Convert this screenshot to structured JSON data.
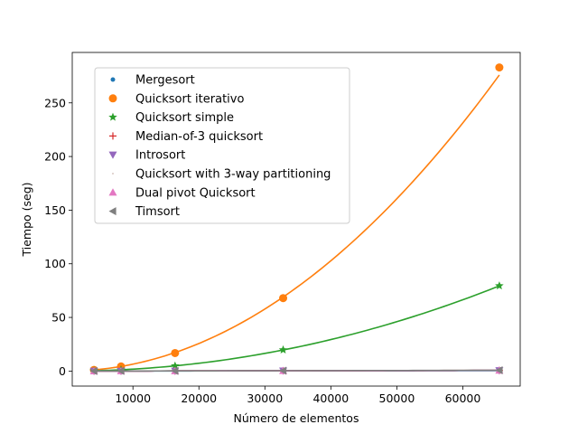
{
  "chart_data": {
    "type": "line",
    "xlabel": "Número de elementos",
    "ylabel": "Tiempo (seg)",
    "xlim": [
      800,
      68700
    ],
    "ylim": [
      -14,
      297
    ],
    "x_ticks": [
      10000,
      20000,
      30000,
      40000,
      50000,
      60000
    ],
    "y_ticks": [
      0,
      50,
      100,
      150,
      200,
      250
    ],
    "grid": false,
    "legend_position": "top-left",
    "x": [
      4096,
      8192,
      16384,
      32768,
      65536
    ],
    "series": [
      {
        "name": "Mergesort",
        "color": "#1f77b4",
        "marker": "point",
        "values": [
          0.02,
          0.04,
          0.09,
          0.19,
          0.4
        ]
      },
      {
        "name": "Quicksort iterativo",
        "color": "#ff7f0e",
        "marker": "circle",
        "values": [
          1.1,
          4.3,
          16.8,
          68.0,
          283.0
        ]
      },
      {
        "name": "Quicksort simple",
        "color": "#2ca02c",
        "marker": "star",
        "values": [
          0.3,
          1.2,
          4.8,
          19.8,
          79.5
        ]
      },
      {
        "name": "Median-of-3 quicksort",
        "color": "#d62728",
        "marker": "plus",
        "values": [
          0.03,
          0.06,
          0.13,
          0.28,
          0.6
        ]
      },
      {
        "name": "Introsort",
        "color": "#9467bd",
        "marker": "triangle-down",
        "values": [
          0.03,
          0.06,
          0.13,
          0.28,
          0.6
        ]
      },
      {
        "name": "Quicksort with 3-way partitioning",
        "color": "#8c564b",
        "marker": "pixel",
        "values": [
          0.03,
          0.06,
          0.14,
          0.3,
          0.65
        ]
      },
      {
        "name": "Dual pivot Quicksort",
        "color": "#e377c2",
        "marker": "triangle-up",
        "values": [
          0.03,
          0.06,
          0.13,
          0.28,
          0.6
        ]
      },
      {
        "name": "Timsort",
        "color": "#7f7f7f",
        "marker": "triangle-left",
        "values": [
          0.03,
          0.07,
          0.15,
          0.33,
          0.7
        ]
      }
    ]
  }
}
